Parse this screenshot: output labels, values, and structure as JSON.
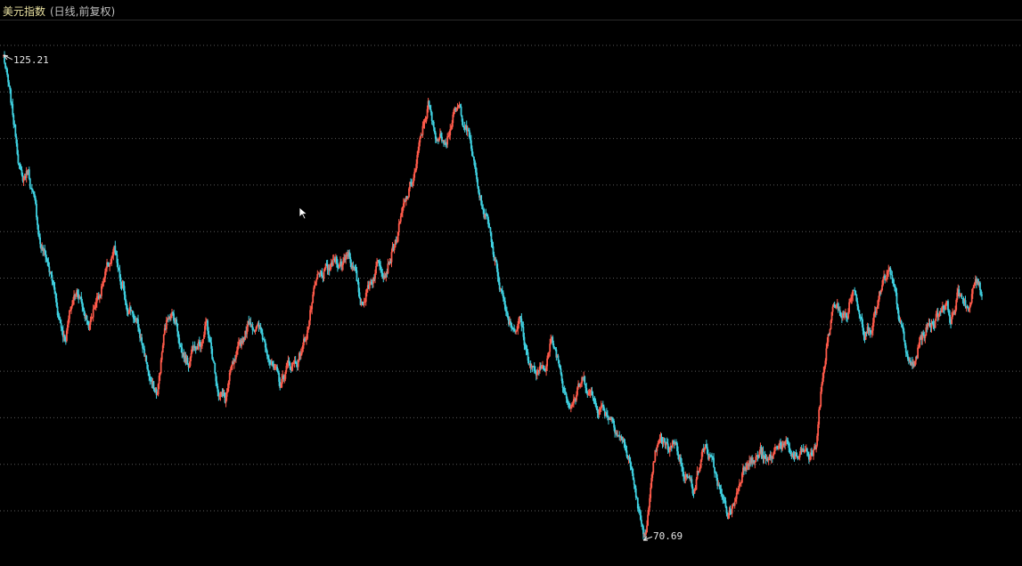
{
  "header": {
    "title": "美元指数",
    "subtitle": "(日线,前复权)"
  },
  "colors": {
    "up": "#ff5a4a",
    "down": "#3fd0e0",
    "grid": "#5a5a5a",
    "background": "#000000",
    "title": "#e8e0a0"
  },
  "chart_data": {
    "type": "line",
    "style": "daily candlesticks (red up, cyan down) on black",
    "grid": "horizontal dashed",
    "max_label": "125.21",
    "min_label": "70.69",
    "ylim": [
      69,
      127
    ],
    "series": [
      {
        "values": [
          125.21,
          120.5,
          116.0,
          111.0,
          112.3,
          108.5,
          104.0,
          102.4,
          99.5,
          95.8,
          93.5,
          96.9,
          99.2,
          96.5,
          94.8,
          97.7,
          99.4,
          101.3,
          103.0,
          99.3,
          97.2,
          96.5,
          94.0,
          91.5,
          88.0,
          87.1,
          93.3,
          96.7,
          95.4,
          92.1,
          90.5,
          93.6,
          93.1,
          95.0,
          91.0,
          87.5,
          86.3,
          89.5,
          91.0,
          93.6,
          95.4,
          94.9,
          93.6,
          92.2,
          89.5,
          88.0,
          90.1,
          90.5,
          91.2,
          93.3,
          96.8,
          99.7,
          100.5,
          101.0,
          102.3,
          101.7,
          103.5,
          101.0,
          97.3,
          98.7,
          100.4,
          102.2,
          101.3,
          103.0,
          104.9,
          107.8,
          110.0,
          112.5,
          116.4,
          119.7,
          116.3,
          115.9,
          116.4,
          118.2,
          119.0,
          117.7,
          114.8,
          110.5,
          107.6,
          105.9,
          101.7,
          98.6,
          95.9,
          94.7,
          95.5,
          91.7,
          89.9,
          89.0,
          90.6,
          92.9,
          91.4,
          88.5,
          86.4,
          86.9,
          88.6,
          88.0,
          86.2,
          85.8,
          85.1,
          84.5,
          82.8,
          81.2,
          78.6,
          75.0,
          70.69,
          74.8,
          80.5,
          81.6,
          80.8,
          82.2,
          79.7,
          78.2,
          76.5,
          78.8,
          81.5,
          79.3,
          77.4,
          74.5,
          73.6,
          75.4,
          78.5,
          80.4,
          79.5,
          80.6,
          79.1,
          80.1,
          81.9,
          81.1,
          80.3,
          79.8,
          80.6,
          79.9,
          81.1,
          88.2,
          93.7,
          97.2,
          96.2,
          95.8,
          98.9,
          97.3,
          94.5,
          95.1,
          96.9,
          99.5,
          100.4,
          97.6,
          94.1,
          90.6,
          90.1,
          93.3,
          94.5,
          95.3,
          96.4,
          97.7,
          95.4,
          97.9,
          98.2,
          96.5,
          100.0,
          98.5
        ]
      }
    ]
  }
}
